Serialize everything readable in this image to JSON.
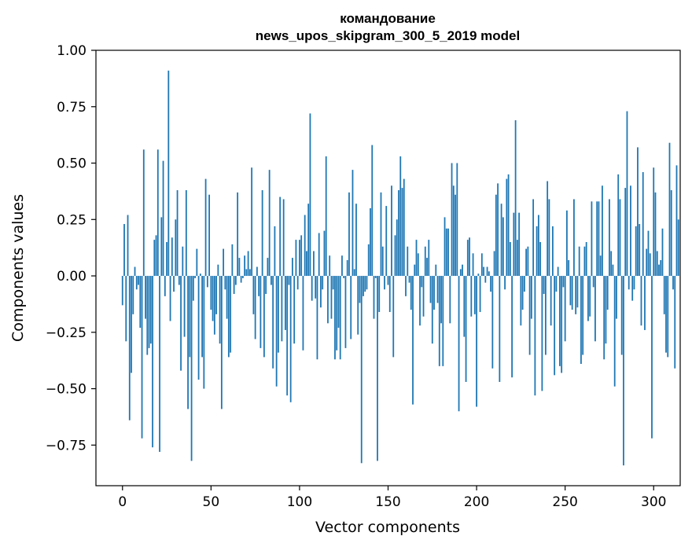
{
  "chart_data": {
    "type": "bar",
    "title": "командование",
    "subtitle": "news_upos_skipgram_300_5_2019 model",
    "xlabel": "Vector components",
    "ylabel": "Components values",
    "xlim": [
      -15,
      315
    ],
    "ylim": [
      -0.93,
      1.0
    ],
    "xticks": [
      0,
      50,
      100,
      150,
      200,
      250,
      300
    ],
    "xtick_labels": [
      "0",
      "50",
      "100",
      "150",
      "200",
      "250",
      "300"
    ],
    "yticks": [
      1.0,
      0.75,
      0.5,
      0.25,
      0.0,
      -0.25,
      -0.5,
      -0.75
    ],
    "ytick_labels": [
      "1.00",
      "0.75",
      "0.50",
      "0.25",
      "0.00",
      "−0.25",
      "−0.50",
      "−0.75"
    ],
    "grid": false,
    "bar_color": "#1f77b4",
    "series": [
      {
        "values": [
          -0.13,
          0.23,
          -0.29,
          0.27,
          -0.64,
          -0.43,
          -0.17,
          0.04,
          -0.06,
          -0.04,
          -0.23,
          -0.72,
          0.56,
          -0.19,
          -0.35,
          -0.32,
          -0.3,
          -0.76,
          0.16,
          0.18,
          0.56,
          -0.78,
          0.26,
          0.51,
          -0.09,
          0.15,
          0.91,
          -0.2,
          0.17,
          -0.07,
          0.25,
          0.38,
          -0.04,
          -0.42,
          0.13,
          -0.27,
          0.38,
          -0.59,
          -0.36,
          -0.82,
          -0.11,
          -0.01,
          0.12,
          -0.46,
          0.01,
          -0.36,
          -0.5,
          0.43,
          -0.05,
          0.36,
          -0.15,
          -0.2,
          -0.26,
          -0.17,
          0.05,
          -0.3,
          -0.59,
          0.12,
          -0.06,
          -0.19,
          -0.36,
          -0.34,
          0.14,
          -0.08,
          -0.04,
          0.37,
          0.08,
          -0.03,
          -0.01,
          0.09,
          0.03,
          0.11,
          0.03,
          0.48,
          -0.17,
          -0.28,
          0.04,
          -0.09,
          -0.32,
          0.38,
          -0.36,
          -0.08,
          0.08,
          0.47,
          -0.04,
          -0.41,
          0.22,
          -0.49,
          -0.34,
          0.35,
          -0.29,
          0.34,
          -0.24,
          -0.53,
          -0.04,
          -0.56,
          0.08,
          -0.3,
          0.16,
          -0.06,
          0.16,
          0.18,
          -0.33,
          0.27,
          0.11,
          0.32,
          0.72,
          -0.11,
          0.11,
          -0.1,
          -0.37,
          0.19,
          -0.14,
          -0.06,
          0.2,
          0.53,
          -0.21,
          0.09,
          -0.19,
          -0.06,
          -0.37,
          -0.33,
          -0.23,
          -0.37,
          0.09,
          -0.01,
          -0.32,
          0.07,
          0.37,
          -0.28,
          0.47,
          0.03,
          0.32,
          -0.26,
          -0.12,
          -0.83,
          -0.09,
          -0.07,
          -0.06,
          0.14,
          0.3,
          0.58,
          -0.19,
          -0.01,
          -0.82,
          -0.16,
          0.37,
          0.13,
          -0.06,
          0.31,
          -0.04,
          -0.16,
          0.4,
          -0.36,
          0.18,
          0.25,
          0.38,
          0.53,
          0.39,
          0.43,
          -0.09,
          0.13,
          -0.03,
          -0.15,
          -0.57,
          0.05,
          0.16,
          0.1,
          -0.22,
          -0.05,
          -0.18,
          0.13,
          0.08,
          0.16,
          -0.12,
          -0.3,
          -0.15,
          0.05,
          -0.12,
          -0.4,
          -0.21,
          -0.4,
          0.26,
          0.21,
          0.21,
          -0.21,
          0.5,
          0.4,
          0.36,
          0.5,
          -0.6,
          0.03,
          0.05,
          -0.27,
          -0.47,
          0.16,
          0.17,
          -0.18,
          0.1,
          -0.17,
          -0.58,
          0.01,
          -0.16,
          0.1,
          0.04,
          -0.03,
          0.04,
          0.02,
          -0.07,
          -0.41,
          0.11,
          0.36,
          0.41,
          -0.47,
          0.32,
          0.26,
          -0.06,
          0.43,
          0.45,
          0.15,
          -0.45,
          0.28,
          0.69,
          0.16,
          0.28,
          -0.22,
          -0.15,
          -0.07,
          0.12,
          0.13,
          -0.35,
          -0.19,
          0.34,
          -0.53,
          0.22,
          0.27,
          0.15,
          -0.51,
          -0.08,
          -0.35,
          0.42,
          0.34,
          -0.22,
          0.22,
          -0.44,
          -0.07,
          0.04,
          -0.4,
          -0.43,
          -0.05,
          -0.29,
          0.29,
          0.07,
          -0.13,
          -0.15,
          0.34,
          -0.17,
          -0.14,
          0.13,
          -0.39,
          -0.35,
          0.13,
          0.15,
          -0.2,
          -0.18,
          0.33,
          -0.05,
          -0.29,
          0.33,
          0.33,
          0.09,
          0.4,
          -0.37,
          -0.3,
          -0.15,
          0.34,
          0.11,
          0.05,
          -0.49,
          -0.19,
          0.45,
          0.34,
          -0.35,
          -0.84,
          0.39,
          0.73,
          -0.06,
          0.4,
          -0.11,
          -0.06,
          0.22,
          0.57,
          0.23,
          -0.22,
          0.46,
          -0.24,
          0.12,
          0.2,
          0.1,
          -0.72,
          0.48,
          0.37,
          0.11,
          0.05,
          0.07,
          0.21,
          -0.17,
          -0.34,
          -0.36,
          0.59,
          0.38,
          -0.06,
          -0.41,
          0.49,
          0.25
        ]
      }
    ]
  }
}
